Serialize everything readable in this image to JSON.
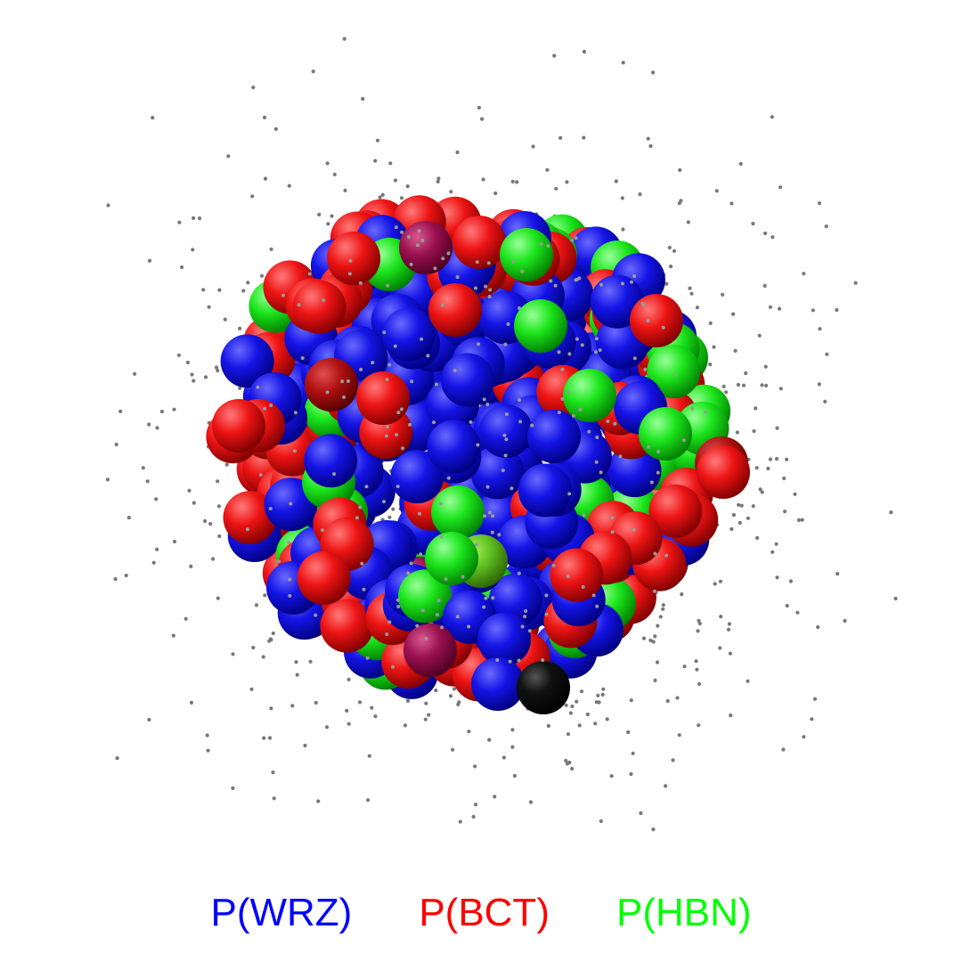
{
  "legend": {
    "items": [
      {
        "label": "P(WRZ)",
        "color": "#0000ff"
      },
      {
        "label": "P(BCT)",
        "color": "#ff0000"
      },
      {
        "label": "P(HBN)",
        "color": "#00ff00"
      }
    ]
  },
  "colors": {
    "wrz": "#1010e8",
    "bct": "#e81010",
    "hbn": "#18e818",
    "mixed_wrz_bct": "#9a1050",
    "mixed_bct_bct": "#b01010",
    "mixed_hbn_bct": "#60c020",
    "highlight": "#000000",
    "points": "#777777"
  }
}
